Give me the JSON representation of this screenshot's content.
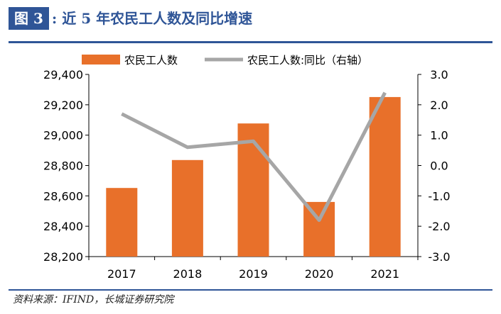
{
  "header": {
    "figure_label": "图 3",
    "title": ":  近 5 年农民工人数及同比增速"
  },
  "source": "资料来源：IFIND，长城证券研究院",
  "colors": {
    "bar": "#e8702a",
    "line": "#a6a6a6",
    "accent": "#2f5597",
    "text": "#000000"
  },
  "chart_data": {
    "type": "bar",
    "categories": [
      "2017",
      "2018",
      "2019",
      "2020",
      "2021"
    ],
    "series": [
      {
        "name": "农民工人数",
        "type": "bar",
        "axis": "left",
        "values": [
          28652,
          28836,
          29077,
          28560,
          29251
        ]
      },
      {
        "name": "农民工人数:同比（右轴）",
        "type": "line",
        "axis": "right",
        "values": [
          1.7,
          0.6,
          0.8,
          -1.8,
          2.4
        ]
      }
    ],
    "y_left": {
      "min": 28200,
      "max": 29400,
      "ticks": [
        "28,200",
        "28,400",
        "28,600",
        "28,800",
        "29,000",
        "29,200",
        "29,400"
      ]
    },
    "y_right": {
      "min": -3.0,
      "max": 3.0,
      "ticks": [
        "-3.0",
        "-2.0",
        "-1.0",
        "0.0",
        "1.0",
        "2.0",
        "3.0"
      ]
    },
    "legend_position": "top",
    "grid": false
  }
}
